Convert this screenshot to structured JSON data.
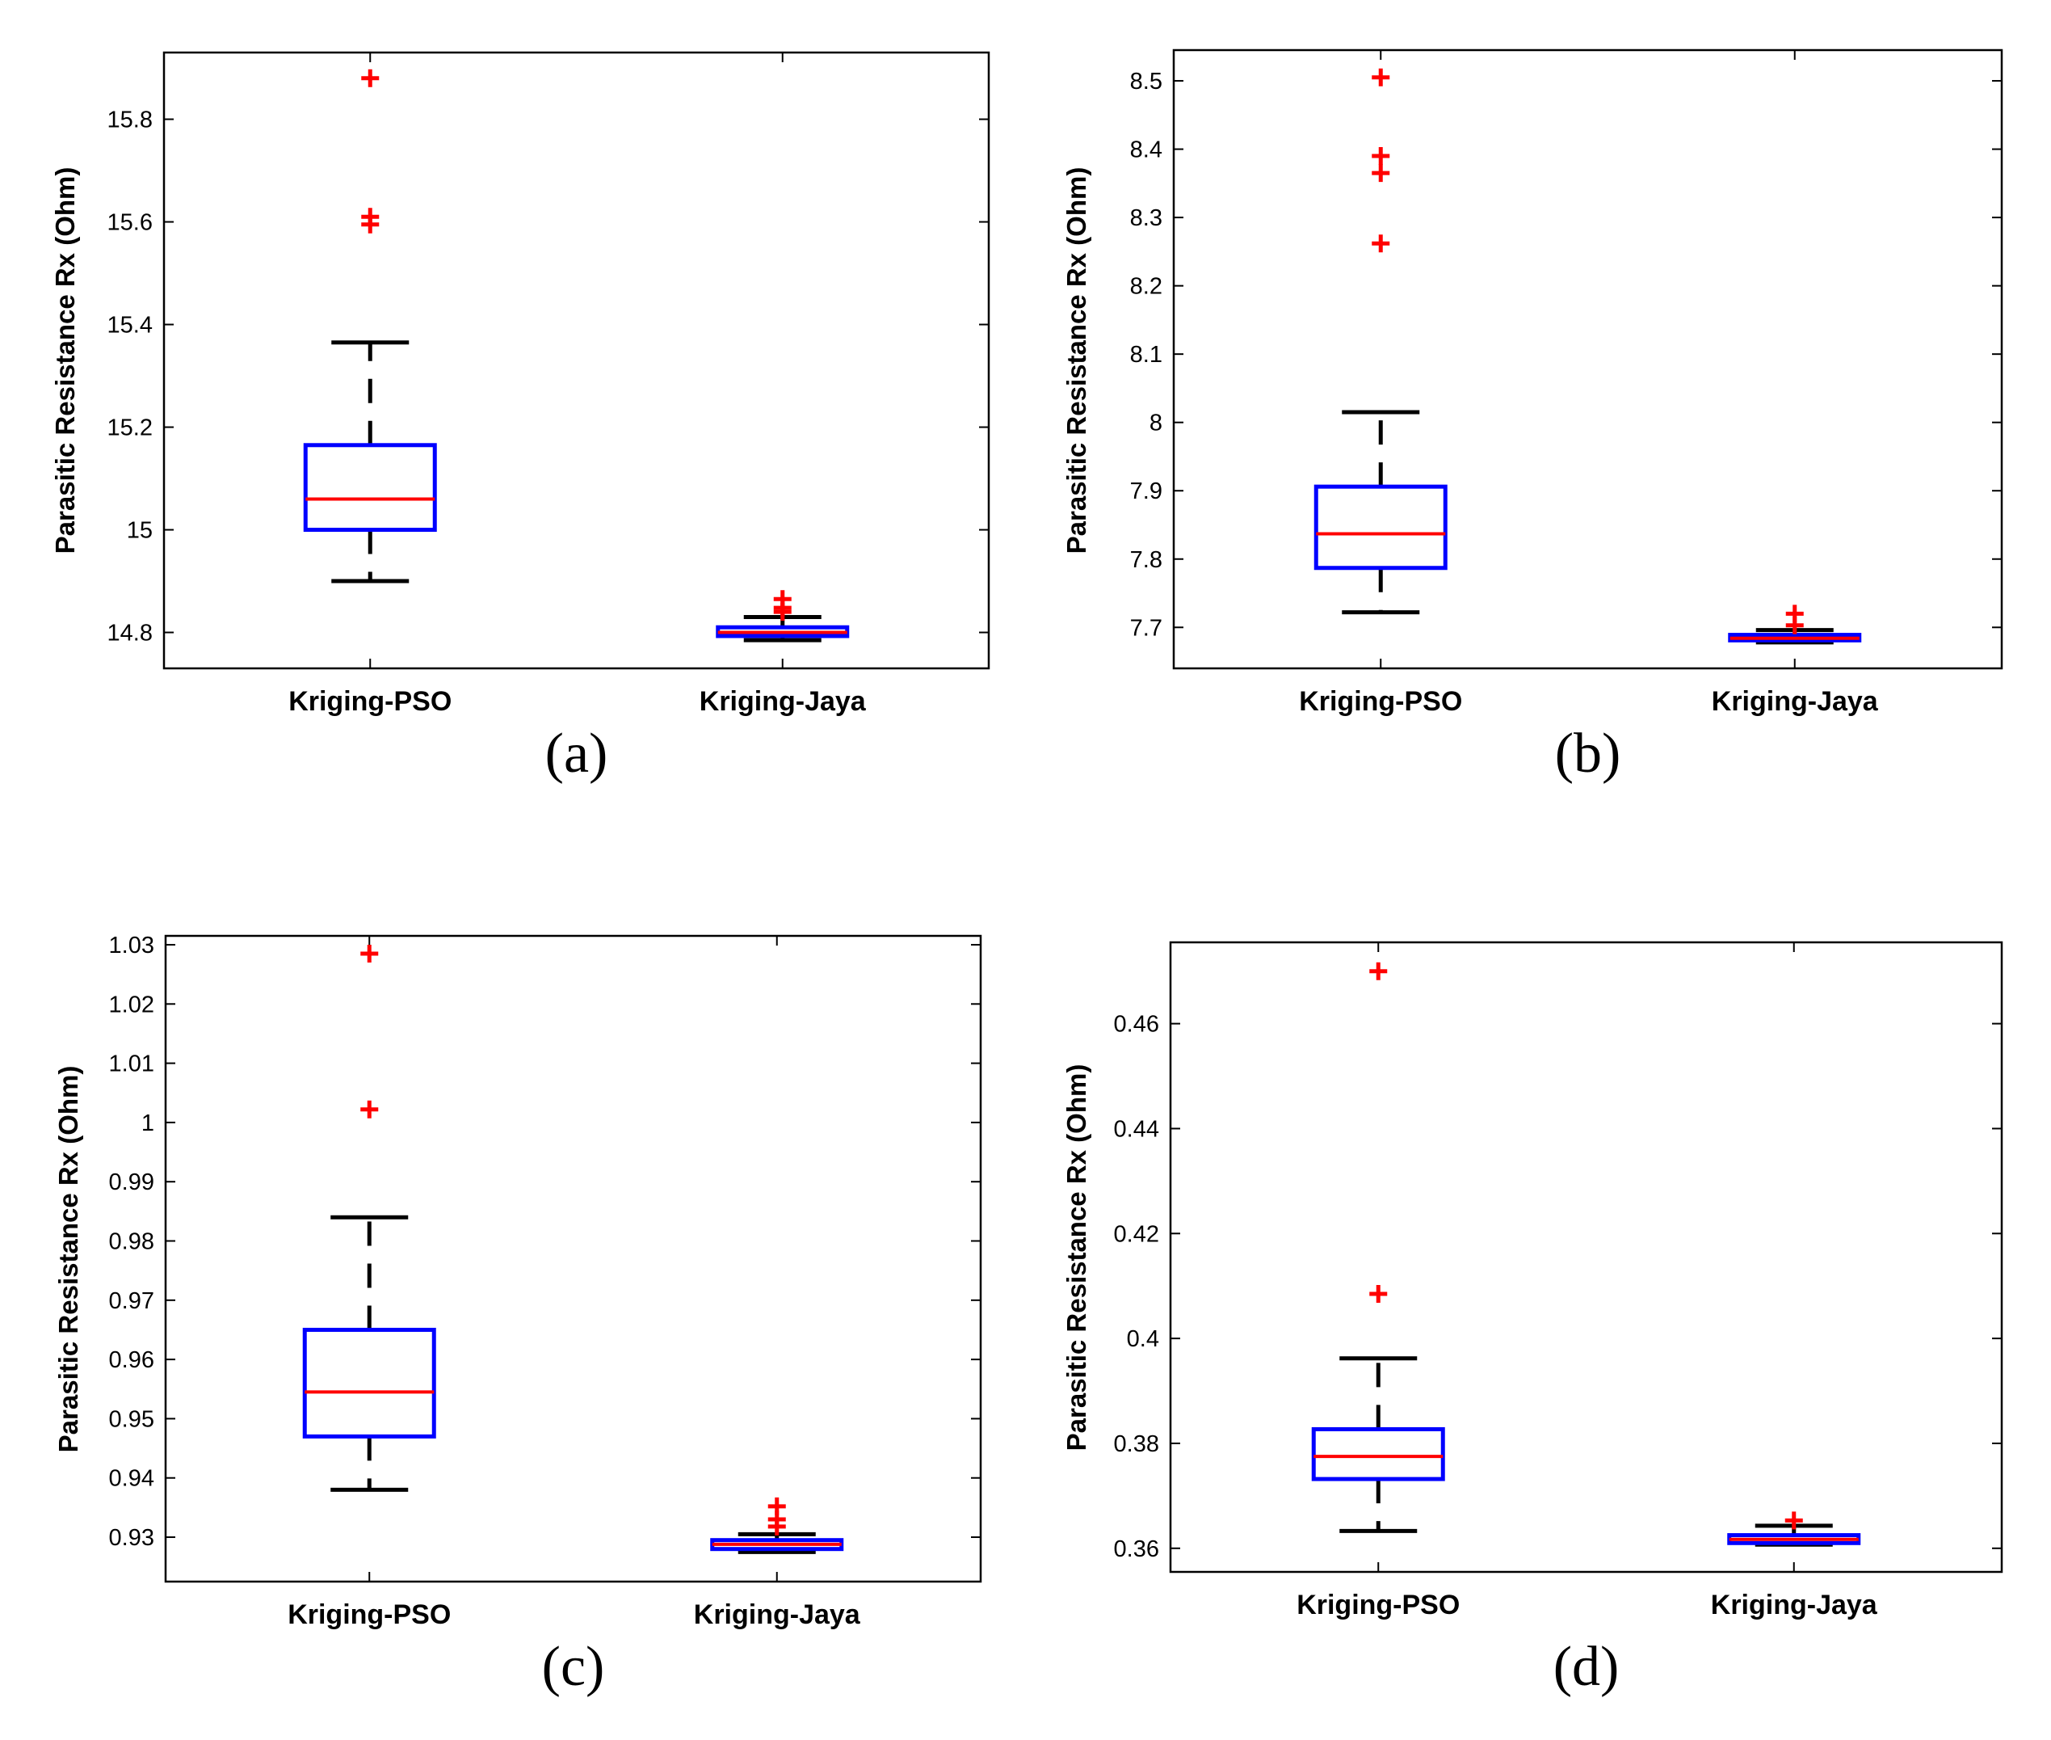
{
  "colors": {
    "box": "#0000ff",
    "median": "#ff0000",
    "whisker": "#000000",
    "outlier": "#ff0000"
  },
  "chart_data": [
    {
      "type": "boxplot",
      "panel_label": "(a)",
      "ylabel": "Parasitic Resistance Rx (Ohm)",
      "categories": [
        "Kriging-PSO",
        "Kriging-Jaya"
      ],
      "ylim": [
        14.73,
        15.93
      ],
      "yticks": [
        14.8,
        15,
        15.2,
        15.4,
        15.6,
        15.8
      ],
      "ytick_labels": [
        "14.8",
        "15",
        "15.2",
        "15.4",
        "15.6",
        "15.8"
      ],
      "boxes": [
        {
          "whisker_low": 14.9,
          "q1": 15.0,
          "median": 15.06,
          "q3": 15.165,
          "whisker_high": 15.365,
          "outliers": [
            15.88,
            15.61,
            15.595
          ]
        },
        {
          "whisker_low": 14.785,
          "q1": 14.793,
          "median": 14.8,
          "q3": 14.81,
          "whisker_high": 14.83,
          "outliers": [
            14.865,
            14.848,
            14.84
          ]
        }
      ]
    },
    {
      "type": "boxplot",
      "panel_label": "(b)",
      "ylabel": "Parasitic Resistance Rx (Ohm)",
      "categories": [
        "Kriging-PSO",
        "Kriging-Jaya"
      ],
      "ylim": [
        7.64,
        8.545
      ],
      "yticks": [
        7.7,
        7.8,
        7.9,
        8,
        8.1,
        8.2,
        8.3,
        8.4,
        8.5
      ],
      "ytick_labels": [
        "7.7",
        "7.8",
        "7.9",
        "8",
        "8.1",
        "8.2",
        "8.3",
        "8.4",
        "8.5"
      ],
      "boxes": [
        {
          "whisker_low": 7.722,
          "q1": 7.787,
          "median": 7.837,
          "q3": 7.906,
          "whisker_high": 8.015,
          "outliers": [
            8.505,
            8.39,
            8.365,
            8.262
          ]
        },
        {
          "whisker_low": 7.678,
          "q1": 7.681,
          "median": 7.684,
          "q3": 7.689,
          "whisker_high": 7.696,
          "outliers": [
            7.72,
            7.703
          ]
        }
      ]
    },
    {
      "type": "boxplot",
      "panel_label": "(c)",
      "ylabel": "Parasitic Resistance Rx (Ohm)",
      "categories": [
        "Kriging-PSO",
        "Kriging-Jaya"
      ],
      "ylim": [
        0.9225,
        1.0315
      ],
      "yticks": [
        0.93,
        0.94,
        0.95,
        0.96,
        0.97,
        0.98,
        0.99,
        1,
        1.01,
        1.02,
        1.03
      ],
      "ytick_labels": [
        "0.93",
        "0.94",
        "0.95",
        "0.96",
        "0.97",
        "0.98",
        "0.99",
        "1",
        "1.01",
        "1.02",
        "1.03"
      ],
      "boxes": [
        {
          "whisker_low": 0.938,
          "q1": 0.947,
          "median": 0.9545,
          "q3": 0.965,
          "whisker_high": 0.984,
          "outliers": [
            1.0285,
            1.0022
          ]
        },
        {
          "whisker_low": 0.9275,
          "q1": 0.928,
          "median": 0.9288,
          "q3": 0.9295,
          "whisker_high": 0.9305,
          "outliers": [
            0.9352,
            0.933,
            0.9318
          ]
        }
      ]
    },
    {
      "type": "boxplot",
      "panel_label": "(d)",
      "ylabel": "Parasitic Resistance Rx (Ohm)",
      "categories": [
        "Kriging-PSO",
        "Kriging-Jaya"
      ],
      "ylim": [
        0.3555,
        0.4755
      ],
      "yticks": [
        0.36,
        0.38,
        0.4,
        0.42,
        0.44,
        0.46
      ],
      "ytick_labels": [
        "0.36",
        "0.38",
        "0.4",
        "0.42",
        "0.44",
        "0.46"
      ],
      "boxes": [
        {
          "whisker_low": 0.3633,
          "q1": 0.3732,
          "median": 0.3775,
          "q3": 0.3827,
          "whisker_high": 0.3962,
          "outliers": [
            0.47,
            0.4085
          ]
        },
        {
          "whisker_low": 0.3607,
          "q1": 0.361,
          "median": 0.3617,
          "q3": 0.3625,
          "whisker_high": 0.3643,
          "outliers": [
            0.3653
          ]
        }
      ]
    }
  ]
}
